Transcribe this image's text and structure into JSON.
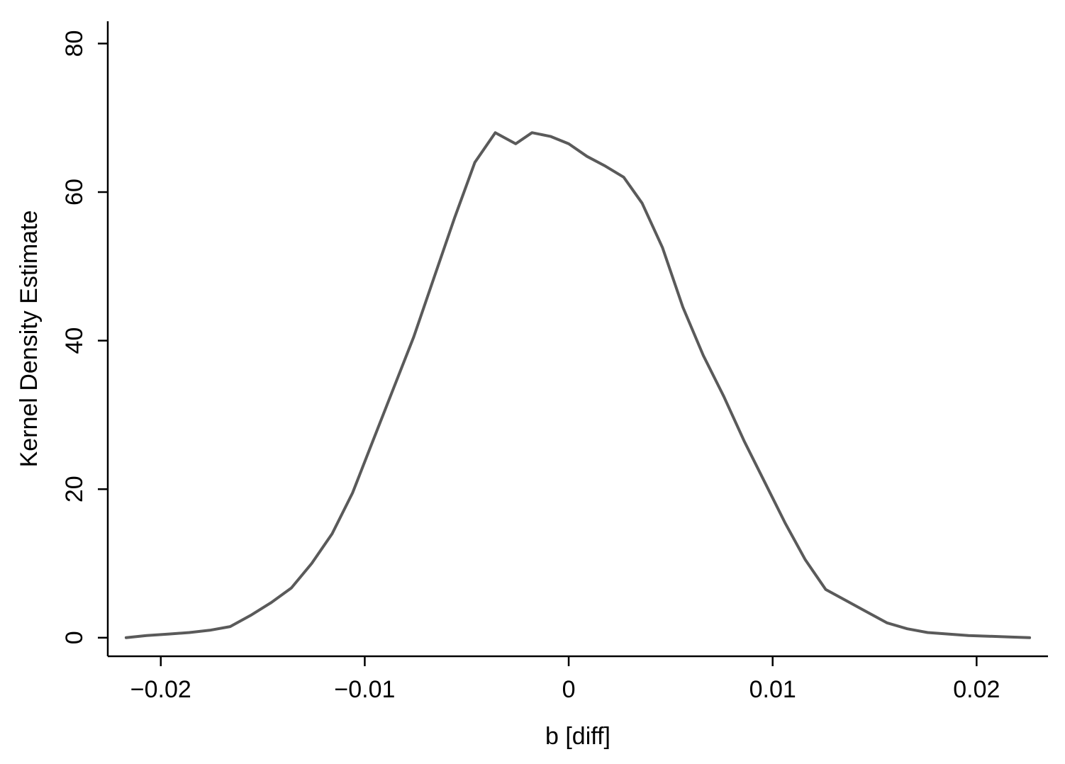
{
  "chart_data": {
    "type": "line",
    "title": "",
    "xlabel": "b [diff]",
    "ylabel": "Kernel Density Estimate",
    "xlim": [
      -0.0226,
      0.0235
    ],
    "ylim": [
      -2.5,
      83
    ],
    "x_ticks": [
      -0.02,
      -0.01,
      0,
      0.01,
      0.02
    ],
    "x_tick_labels": [
      "−0.02",
      "−0.01",
      "0",
      "0.01",
      "0.02"
    ],
    "y_ticks": [
      0,
      20,
      40,
      60,
      80
    ],
    "y_tick_labels": [
      "0",
      "20",
      "40",
      "60",
      "80"
    ],
    "grid": false,
    "series": [
      {
        "color": "#5a5a5a",
        "x": [
          -0.0217,
          -0.0207,
          -0.0196,
          -0.0186,
          -0.0176,
          -0.0166,
          -0.0156,
          -0.0146,
          -0.0136,
          -0.0126,
          -0.0116,
          -0.0106,
          -0.0096,
          -0.0086,
          -0.0076,
          -0.0066,
          -0.0056,
          -0.0046,
          -0.0036,
          -0.0026,
          -0.0018,
          -0.0009,
          0.0,
          0.0009,
          0.0018,
          0.0027,
          0.0036,
          0.0046,
          0.0056,
          0.0066,
          0.0076,
          0.0086,
          0.0096,
          0.0106,
          0.0116,
          0.0126,
          0.0136,
          0.0146,
          0.0156,
          0.0166,
          0.0176,
          0.0186,
          0.0196,
          0.0206,
          0.0216,
          0.0226
        ],
        "values": [
          0.0,
          0.3,
          0.5,
          0.7,
          1.0,
          1.5,
          3.0,
          4.7,
          6.7,
          10.0,
          14.0,
          19.5,
          26.5,
          33.5,
          40.5,
          48.5,
          56.5,
          64.0,
          68.0,
          66.5,
          68.0,
          67.5,
          66.5,
          64.8,
          63.5,
          62.0,
          58.5,
          52.5,
          44.5,
          38.0,
          32.5,
          26.5,
          21.0,
          15.5,
          10.5,
          6.5,
          5.0,
          3.5,
          2.0,
          1.2,
          0.7,
          0.5,
          0.3,
          0.2,
          0.1,
          0.0
        ]
      }
    ]
  }
}
